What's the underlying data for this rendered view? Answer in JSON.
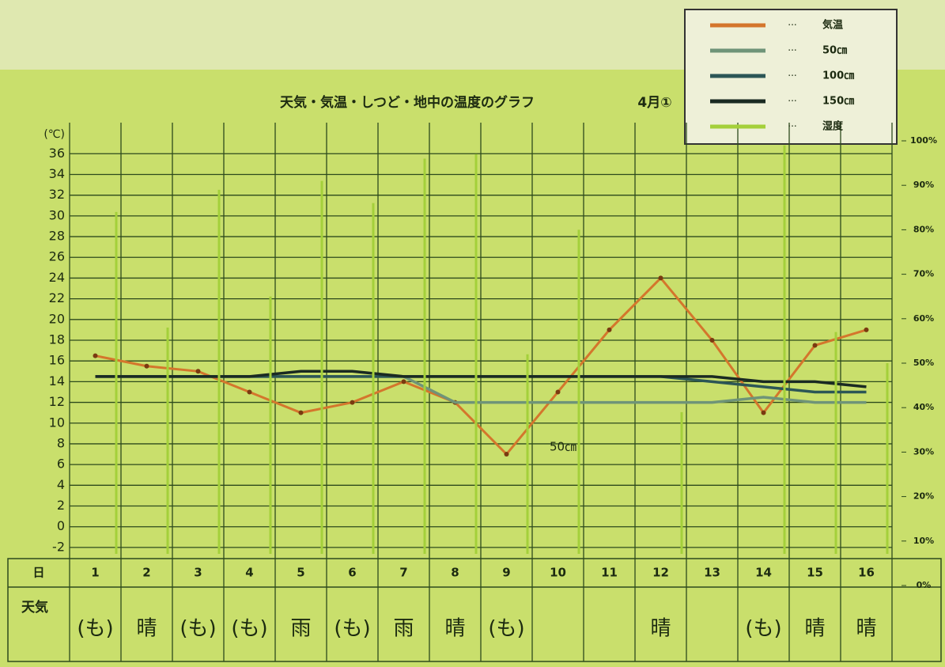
{
  "chart_data": {
    "type": "line",
    "title": "天気・気温・しつど・地中の温度のグラフ",
    "subtitle": "4月①",
    "y_label": "(℃)",
    "day_label": "日",
    "weather_label": "天気",
    "categories": [
      "1",
      "2",
      "3",
      "4",
      "5",
      "6",
      "7",
      "8",
      "9",
      "10",
      "11",
      "12",
      "13",
      "14",
      "15",
      "16"
    ],
    "weather": [
      "(も)",
      "晴",
      "(も)",
      "(も)",
      "雨",
      "(も)",
      "雨",
      "晴",
      "(も)",
      null,
      null,
      "晴",
      null,
      "(も)",
      "晴",
      "晴"
    ],
    "series": [
      {
        "name": "気温",
        "color": "#d4762c",
        "values": [
          16.5,
          15.5,
          15,
          13,
          11,
          12,
          14,
          12,
          7,
          13,
          19,
          24,
          18,
          11,
          17.5,
          19
        ]
      },
      {
        "name": "50㎝",
        "color": "#6f9478",
        "values": [
          14.5,
          14.5,
          14.5,
          14.5,
          14.5,
          14.5,
          14.5,
          12,
          12,
          12,
          12,
          12,
          12,
          12.5,
          12,
          12
        ]
      },
      {
        "name": "100㎝",
        "color": "#2c5656",
        "values": [
          14.5,
          14.5,
          14.5,
          14.5,
          14.5,
          14.5,
          14.5,
          14.5,
          14.5,
          14.5,
          14.5,
          14.5,
          14,
          13.5,
          13,
          13
        ]
      },
      {
        "name": "150㎝",
        "color": "#1a2a22",
        "values": [
          14.5,
          14.5,
          14.5,
          14.5,
          15,
          15,
          14.5,
          14.5,
          14.5,
          14.5,
          14.5,
          14.5,
          14.5,
          14,
          14,
          13.5
        ]
      },
      {
        "name": "湿度",
        "color": "#a4d03a",
        "axis": "y2",
        "values": [
          84,
          58,
          89,
          65,
          91,
          86,
          96,
          97,
          52,
          80,
          null,
          39,
          null,
          99,
          57,
          50
        ]
      }
    ],
    "annotation": "50㎝",
    "ylim": [
      -3,
      39
    ],
    "yticks": [
      -2,
      0,
      2,
      4,
      6,
      8,
      10,
      12,
      14,
      16,
      18,
      20,
      22,
      24,
      26,
      28,
      30,
      32,
      34,
      36
    ],
    "y2lim": [
      0,
      100
    ],
    "y2ticks": [
      {
        "value": 0,
        "label": "0%"
      },
      {
        "value": 10,
        "label": "10%"
      },
      {
        "value": 20,
        "label": "20%"
      },
      {
        "value": 30,
        "label": "30%"
      },
      {
        "value": 40,
        "label": "40%"
      },
      {
        "value": 50,
        "label": "50%"
      },
      {
        "value": 60,
        "label": "60%"
      },
      {
        "value": 70,
        "label": "70%"
      },
      {
        "value": 80,
        "label": "80%"
      },
      {
        "value": 90,
        "label": "90%"
      },
      {
        "value": 100,
        "label": "100%"
      }
    ],
    "grid": true,
    "legend": "top-right"
  }
}
